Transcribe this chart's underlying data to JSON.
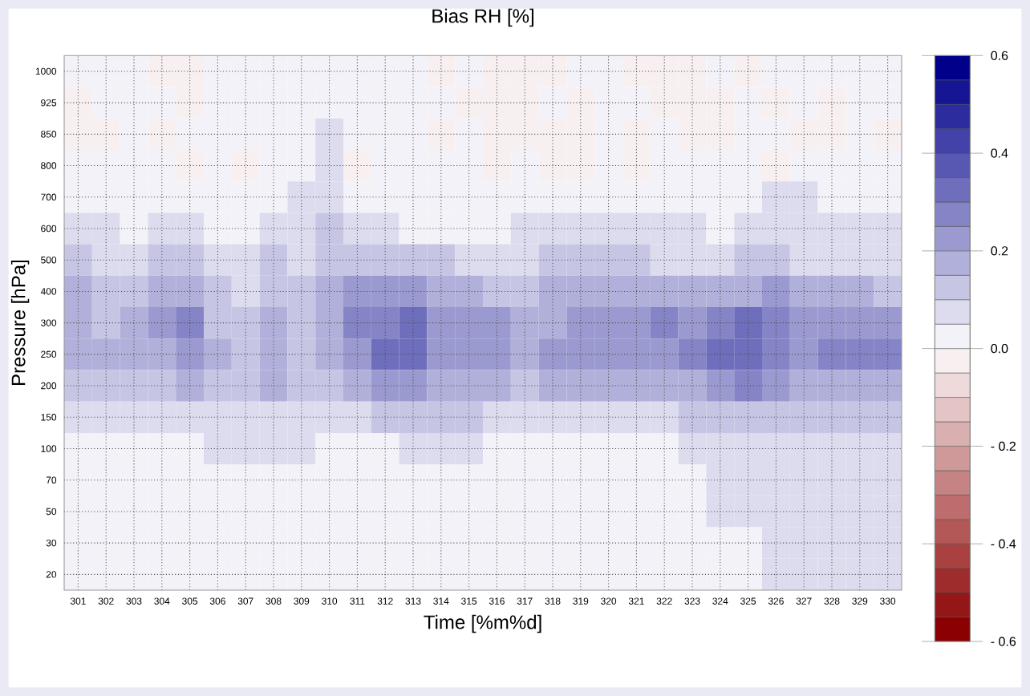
{
  "chart_data": {
    "type": "heatmap",
    "title": "Bias RH [%]",
    "xlabel": "Time [%m%d]",
    "ylabel": "Pressure [hPa]",
    "categories": [
      "301",
      "302",
      "303",
      "304",
      "305",
      "306",
      "307",
      "308",
      "309",
      "310",
      "311",
      "312",
      "313",
      "314",
      "315",
      "316",
      "317",
      "318",
      "319",
      "320",
      "321",
      "322",
      "323",
      "324",
      "325",
      "326",
      "327",
      "328",
      "329",
      "330"
    ],
    "y_categories": [
      "1000",
      "925",
      "850",
      "800",
      "700",
      "600",
      "500",
      "400",
      "300",
      "250",
      "200",
      "150",
      "100",
      "70",
      "50",
      "30",
      "20"
    ],
    "cells": [
      [
        0.02,
        0.02,
        0.02,
        -0.02,
        -0.02,
        0.02,
        0.02,
        0.02,
        0.02,
        0.02,
        0.02,
        0.02,
        0.02,
        -0.02,
        0.02,
        -0.02,
        -0.02,
        -0.02,
        0.02,
        0.02,
        -0.02,
        -0.02,
        -0.02,
        0.02,
        -0.02,
        0.02,
        0.02,
        0.02,
        0.02,
        0.02
      ],
      [
        -0.02,
        0.02,
        0.02,
        0.02,
        -0.02,
        0.02,
        0.02,
        0.02,
        0.02,
        0.02,
        0.02,
        0.02,
        0.02,
        0.02,
        -0.02,
        -0.02,
        -0.02,
        0.02,
        -0.02,
        0.02,
        0.02,
        -0.02,
        -0.02,
        -0.02,
        0.02,
        -0.02,
        0.02,
        -0.02,
        0.02,
        0.02
      ],
      [
        -0.02,
        -0.02,
        0.02,
        -0.02,
        0.02,
        0.02,
        0.02,
        0.02,
        0.02,
        0.07,
        0.02,
        0.02,
        0.02,
        -0.02,
        0.02,
        -0.02,
        -0.02,
        -0.02,
        -0.02,
        0.02,
        -0.02,
        0.02,
        -0.02,
        -0.02,
        0.02,
        0.02,
        -0.02,
        -0.02,
        0.02,
        -0.02
      ],
      [
        0.02,
        0.02,
        0.02,
        0.02,
        -0.02,
        0.02,
        -0.02,
        0.02,
        0.02,
        0.07,
        -0.02,
        0.02,
        0.02,
        0.02,
        0.02,
        -0.02,
        0.02,
        -0.02,
        -0.02,
        0.02,
        -0.02,
        0.02,
        0.02,
        0.02,
        0.02,
        -0.02,
        0.02,
        0.02,
        0.02,
        0.02
      ],
      [
        0.02,
        0.02,
        0.02,
        0.02,
        0.02,
        0.02,
        0.02,
        0.02,
        0.07,
        0.07,
        0.02,
        0.02,
        0.02,
        0.02,
        0.02,
        0.02,
        0.02,
        0.02,
        0.02,
        0.02,
        0.02,
        0.02,
        0.02,
        0.02,
        0.02,
        0.07,
        0.07,
        0.02,
        0.02,
        0.02
      ],
      [
        0.07,
        0.07,
        0.02,
        0.07,
        0.07,
        0.02,
        0.02,
        0.07,
        0.07,
        0.12,
        0.07,
        0.07,
        0.02,
        0.02,
        0.02,
        0.02,
        0.07,
        0.07,
        0.07,
        0.07,
        0.07,
        0.07,
        0.07,
        0.02,
        0.07,
        0.07,
        0.07,
        0.07,
        0.07,
        0.07
      ],
      [
        0.12,
        0.07,
        0.07,
        0.12,
        0.12,
        0.07,
        0.07,
        0.12,
        0.07,
        0.12,
        0.12,
        0.12,
        0.12,
        0.12,
        0.07,
        0.07,
        0.07,
        0.12,
        0.12,
        0.12,
        0.12,
        0.07,
        0.07,
        0.07,
        0.12,
        0.12,
        0.07,
        0.07,
        0.07,
        0.07
      ],
      [
        0.17,
        0.12,
        0.12,
        0.17,
        0.17,
        0.12,
        0.07,
        0.12,
        0.12,
        0.17,
        0.22,
        0.22,
        0.22,
        0.17,
        0.17,
        0.12,
        0.12,
        0.17,
        0.17,
        0.17,
        0.17,
        0.17,
        0.17,
        0.17,
        0.17,
        0.22,
        0.17,
        0.17,
        0.17,
        0.12
      ],
      [
        0.17,
        0.12,
        0.17,
        0.22,
        0.27,
        0.12,
        0.12,
        0.17,
        0.12,
        0.17,
        0.27,
        0.27,
        0.32,
        0.22,
        0.22,
        0.22,
        0.17,
        0.17,
        0.22,
        0.22,
        0.22,
        0.27,
        0.22,
        0.27,
        0.32,
        0.27,
        0.22,
        0.22,
        0.22,
        0.22
      ],
      [
        0.17,
        0.17,
        0.17,
        0.17,
        0.22,
        0.17,
        0.12,
        0.17,
        0.12,
        0.17,
        0.22,
        0.32,
        0.32,
        0.22,
        0.22,
        0.22,
        0.17,
        0.22,
        0.22,
        0.22,
        0.22,
        0.22,
        0.27,
        0.32,
        0.32,
        0.27,
        0.22,
        0.27,
        0.27,
        0.27
      ],
      [
        0.12,
        0.12,
        0.12,
        0.12,
        0.17,
        0.12,
        0.12,
        0.17,
        0.12,
        0.12,
        0.17,
        0.22,
        0.22,
        0.17,
        0.17,
        0.17,
        0.12,
        0.17,
        0.17,
        0.17,
        0.17,
        0.17,
        0.17,
        0.22,
        0.27,
        0.22,
        0.17,
        0.17,
        0.17,
        0.17
      ],
      [
        0.07,
        0.07,
        0.07,
        0.07,
        0.07,
        0.07,
        0.07,
        0.07,
        0.07,
        0.07,
        0.07,
        0.12,
        0.12,
        0.12,
        0.12,
        0.07,
        0.07,
        0.07,
        0.07,
        0.07,
        0.07,
        0.07,
        0.12,
        0.12,
        0.12,
        0.12,
        0.12,
        0.12,
        0.12,
        0.12
      ],
      [
        0.02,
        0.02,
        0.02,
        0.02,
        0.02,
        0.07,
        0.07,
        0.07,
        0.07,
        0.02,
        0.02,
        0.02,
        0.07,
        0.07,
        0.07,
        0.02,
        0.02,
        0.02,
        0.02,
        0.02,
        0.02,
        0.02,
        0.07,
        0.07,
        0.07,
        0.07,
        0.07,
        0.07,
        0.07,
        0.07
      ],
      [
        0.02,
        0.02,
        0.02,
        0.02,
        0.02,
        0.02,
        0.02,
        0.02,
        0.02,
        0.02,
        0.02,
        0.02,
        0.02,
        0.02,
        0.02,
        0.02,
        0.02,
        0.02,
        0.02,
        0.02,
        0.02,
        0.02,
        0.02,
        0.07,
        0.07,
        0.07,
        0.07,
        0.07,
        0.07,
        0.07
      ],
      [
        0.02,
        0.02,
        0.02,
        0.02,
        0.02,
        0.02,
        0.02,
        0.02,
        0.02,
        0.02,
        0.02,
        0.02,
        0.02,
        0.02,
        0.02,
        0.02,
        0.02,
        0.02,
        0.02,
        0.02,
        0.02,
        0.02,
        0.02,
        0.07,
        0.07,
        0.07,
        0.07,
        0.07,
        0.07,
        0.07
      ],
      [
        0.02,
        0.02,
        0.02,
        0.02,
        0.02,
        0.02,
        0.02,
        0.02,
        0.02,
        0.02,
        0.02,
        0.02,
        0.02,
        0.02,
        0.02,
        0.02,
        0.02,
        0.02,
        0.02,
        0.02,
        0.02,
        0.02,
        0.02,
        0.02,
        0.02,
        0.07,
        0.07,
        0.07,
        0.07,
        0.07
      ],
      [
        0.02,
        0.02,
        0.02,
        0.02,
        0.02,
        0.02,
        0.02,
        0.02,
        0.02,
        0.02,
        0.02,
        0.02,
        0.02,
        0.02,
        0.02,
        0.02,
        0.02,
        0.02,
        0.02,
        0.02,
        0.02,
        0.02,
        0.02,
        0.02,
        0.02,
        0.07,
        0.07,
        0.07,
        0.07,
        0.07
      ]
    ],
    "clim": [
      -0.6,
      0.6
    ],
    "cticks": [
      0.6,
      0.4,
      0.2,
      {
        "value": 0,
        "label": "0.0"
      },
      {
        "value": -0.2,
        "label": "- 0.2"
      },
      {
        "value": -0.4,
        "label": "- 0.4"
      },
      {
        "value": -0.6,
        "label": "- 0.6"
      }
    ],
    "grid": true
  }
}
